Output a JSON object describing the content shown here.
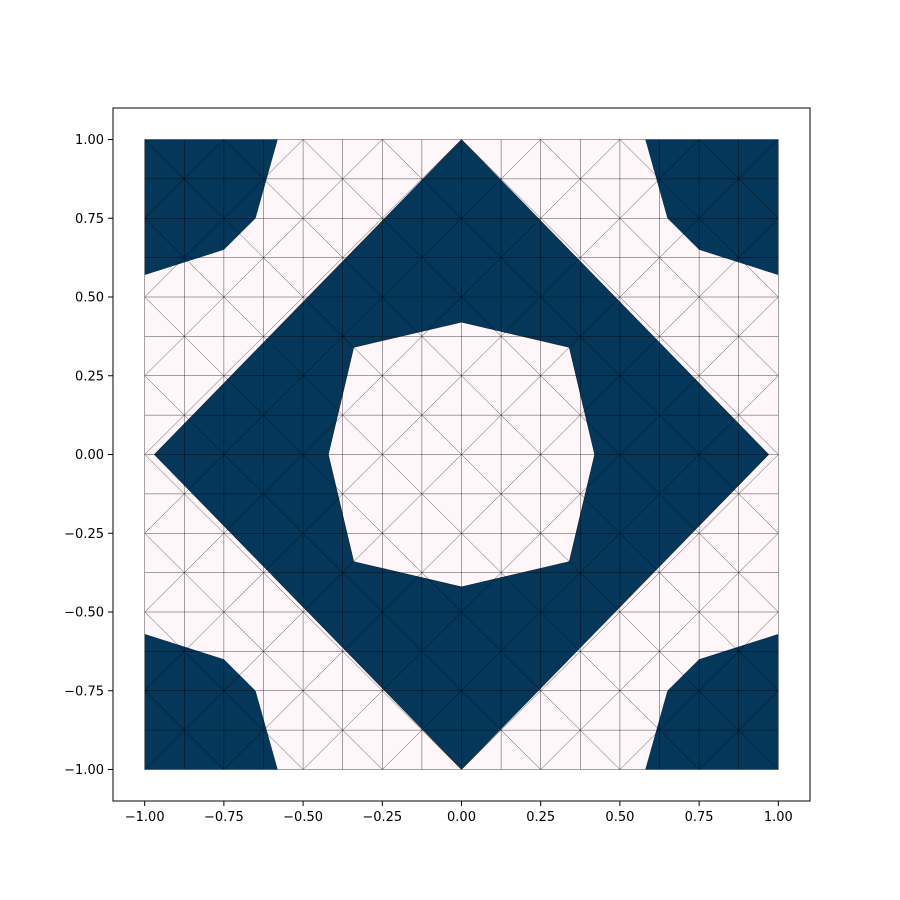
{
  "chart_data": {
    "type": "heatmap",
    "title": "",
    "xlabel": "",
    "ylabel": "",
    "xlim": [
      -1.1,
      1.1
    ],
    "ylim": [
      -1.1,
      1.1
    ],
    "grid": false,
    "xticks": [
      -1.0,
      -0.75,
      -0.5,
      -0.25,
      0.0,
      0.25,
      0.5,
      0.75,
      1.0
    ],
    "yticks": [
      -1.0,
      -0.75,
      -0.5,
      -0.25,
      0.0,
      0.25,
      0.5,
      0.75,
      1.0
    ],
    "xtick_labels": [
      "−1.00",
      "−0.75",
      "−0.50",
      "−0.25",
      "0.00",
      "0.25",
      "0.50",
      "0.75",
      "1.00"
    ],
    "ytick_labels": [
      "−1.00",
      "−0.75",
      "−0.50",
      "−0.25",
      "0.00",
      "0.25",
      "0.50",
      "0.75",
      "1.00"
    ],
    "colors": {
      "high": "#04375a",
      "low": "#fff6fa",
      "mesh_edge": "#000000"
    },
    "mesh_domain": [
      -1.0,
      1.0,
      -1.0,
      1.0
    ],
    "mesh_grid_lines": [
      -1.0,
      -0.875,
      -0.75,
      -0.625,
      -0.5,
      -0.375,
      -0.25,
      -0.125,
      0.0,
      0.125,
      0.25,
      0.375,
      0.5,
      0.625,
      0.75,
      0.875,
      1.0
    ],
    "regions": {
      "diamond_outer": [
        [
          0.0,
          1.0
        ],
        [
          0.97,
          0.0
        ],
        [
          0.0,
          -1.0
        ],
        [
          -0.97,
          0.0
        ]
      ],
      "inner_hole": [
        [
          0.0,
          0.42
        ],
        [
          0.34,
          0.34
        ],
        [
          0.42,
          0.0
        ],
        [
          0.34,
          -0.34
        ],
        [
          0.0,
          -0.42
        ],
        [
          -0.34,
          -0.34
        ],
        [
          -0.42,
          0.0
        ],
        [
          -0.34,
          0.34
        ]
      ],
      "corners": [
        [
          [
            -1.0,
            1.0
          ],
          [
            -0.58,
            1.0
          ],
          [
            -0.65,
            0.75
          ],
          [
            -0.75,
            0.65
          ],
          [
            -1.0,
            0.57
          ]
        ],
        [
          [
            1.0,
            1.0
          ],
          [
            0.58,
            1.0
          ],
          [
            0.65,
            0.75
          ],
          [
            0.75,
            0.65
          ],
          [
            1.0,
            0.57
          ]
        ],
        [
          [
            -1.0,
            -1.0
          ],
          [
            -0.58,
            -1.0
          ],
          [
            -0.65,
            -0.75
          ],
          [
            -0.75,
            -0.65
          ],
          [
            -1.0,
            -0.57
          ]
        ],
        [
          [
            1.0,
            -1.0
          ],
          [
            0.58,
            -1.0
          ],
          [
            0.65,
            -0.75
          ],
          [
            0.75,
            -0.65
          ],
          [
            1.0,
            -0.57
          ]
        ]
      ]
    }
  }
}
